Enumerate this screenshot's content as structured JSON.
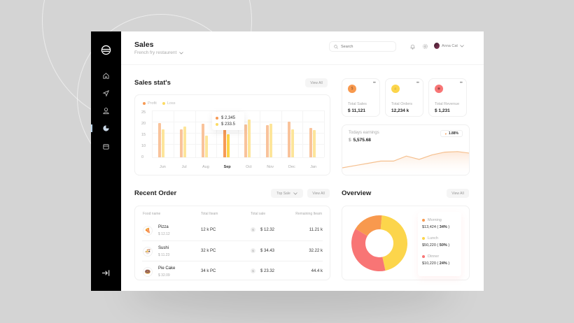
{
  "header": {
    "title": "Sales",
    "restaurant_selector": "French fry restaurent",
    "search_placeholder": "Search",
    "user_name": "Anna Cat"
  },
  "sidebar": {
    "items": [
      {
        "name": "home",
        "icon": "home-icon"
      },
      {
        "name": "send",
        "icon": "send-icon"
      },
      {
        "name": "user",
        "icon": "user-icon"
      },
      {
        "name": "sales",
        "icon": "chart-pie-icon",
        "active": true
      },
      {
        "name": "wallet",
        "icon": "wallet-icon"
      }
    ],
    "bottom_icon": "logout-icon"
  },
  "sales_stats": {
    "title": "Sales stat's",
    "view_all": "View All",
    "legend": [
      {
        "label": "Profit",
        "color": "#f79a55"
      },
      {
        "label": "Loss",
        "color": "#fcdb63"
      }
    ],
    "tooltip": {
      "profit": "$ 2,345",
      "loss": "$ 233.5"
    },
    "y_ticks": [
      "25",
      "20",
      "15",
      "10",
      "0"
    ]
  },
  "chart_data": {
    "type": "bar",
    "title": "Sales stat's",
    "categories": [
      "Jun",
      "Jul",
      "Aug",
      "Sep",
      "Oct",
      "Nov",
      "Dec",
      "Jan"
    ],
    "series": [
      {
        "name": "Profit",
        "color": "#f9c39b",
        "values": [
          18.2,
          15,
          17.8,
          15,
          17.5,
          17,
          19,
          15.5
        ]
      },
      {
        "name": "Loss",
        "color": "#fde59a",
        "values": [
          15,
          16.5,
          11.5,
          12.5,
          20,
          18,
          15,
          14.5
        ]
      }
    ],
    "highlight": {
      "category": "Sep",
      "profit": "$ 2,345",
      "loss": "$ 233.5"
    },
    "y_tick_labels": [
      "0",
      "10",
      "15",
      "20",
      "25"
    ],
    "ylim": [
      0,
      25
    ],
    "grid": true,
    "legend_position": "top-left"
  },
  "stats": [
    {
      "label": "Total Sales",
      "value": "$ 11,121",
      "color": "#f8994e",
      "icon": "dollar-icon"
    },
    {
      "label": "Total Orders",
      "value": "12,234 k",
      "color": "#fcd54b",
      "icon": "shop-icon"
    },
    {
      "label": "Total Revenue",
      "value": "$ 1,231",
      "color": "#f87575",
      "icon": "revenue-icon"
    }
  ],
  "earnings": {
    "label": "Todays earnings",
    "currency": "$",
    "value": "5,575.68",
    "change": "1.88%",
    "trend": [
      10,
      14,
      18,
      22,
      22,
      31,
      25,
      33,
      38,
      39,
      36
    ]
  },
  "recent_order": {
    "title": "Recent Order",
    "filter": "Top Sale",
    "view_all": "View All",
    "columns": [
      "Food name",
      "Total Iteam",
      "Total sale",
      "Remaining Iteam"
    ],
    "rows": [
      {
        "name": "Pizza",
        "price": "$  12.12",
        "total": "12 k PC",
        "sale": "$ 12.32",
        "remaining": "11.21 k",
        "icon": "🍕",
        "icon_name": "pizza-icon"
      },
      {
        "name": "Sushi",
        "price": "$  11.23",
        "total": "32 k PC",
        "sale": "$ 34.43",
        "remaining": "32.22 k",
        "icon": "🍜",
        "icon_name": "sushi-icon"
      },
      {
        "name": "Pie Cake",
        "price": "$  32.09",
        "total": "34 k PC",
        "sale": "$ 23.32",
        "remaining": "44.4 k",
        "icon": "🍩",
        "icon_name": "cake-icon"
      }
    ]
  },
  "overview": {
    "title": "Overview",
    "view_all": "View All",
    "segments": [
      {
        "label": "Morning",
        "amount": "$13,424",
        "pct": "34%",
        "color": "#f8994e"
      },
      {
        "label": "Lunch",
        "amount": "$50,220",
        "pct": "50%",
        "color": "#fcd54b"
      },
      {
        "label": "Dinner",
        "amount": "$10,220",
        "pct": "24%",
        "color": "#f87575"
      }
    ]
  }
}
